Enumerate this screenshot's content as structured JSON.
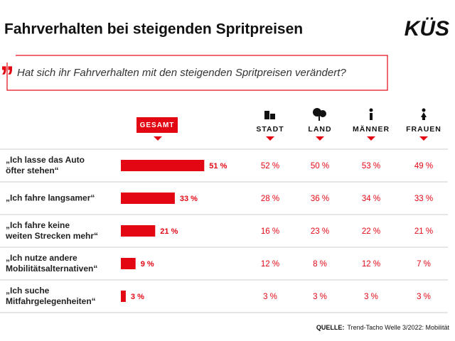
{
  "chart_data": {
    "type": "bar",
    "title": "Fahrverhalten bei steigenden Spritpreisen",
    "brand": "KÜS",
    "question": "Hat sich ihr Fahrverhalten mit den steigenden Spritpreisen verändert?",
    "categories": [
      "„Ich lasse das Auto\nöfter stehen“",
      "„Ich fahre langsamer“",
      "„Ich fahre keine\nweiten Strecken mehr“",
      "„Ich nutze andere\nMobilitätsalternativen“",
      "„Ich suche\nMitfahrgelegenheiten“"
    ],
    "series": [
      {
        "name": "GESAMT",
        "color": "#e30613",
        "values": [
          51,
          33,
          21,
          9,
          3
        ],
        "value_labels": [
          "51 %",
          "33 %",
          "21 %",
          "9 %",
          "3 %"
        ]
      }
    ],
    "breakdown": {
      "columns": [
        "STADT",
        "LAND",
        "MÄNNER",
        "FRAUEN"
      ],
      "rows": [
        [
          "52 %",
          "50 %",
          "53 %",
          "49 %"
        ],
        [
          "28 %",
          "36 %",
          "34 %",
          "33 %"
        ],
        [
          "16 %",
          "23 %",
          "22 %",
          "21 %"
        ],
        [
          "12 %",
          "8 %",
          "12 %",
          "7 %"
        ],
        [
          "3 %",
          "3 %",
          "3 %",
          "3 %"
        ]
      ]
    },
    "source_label": "QUELLE:",
    "source": "Trend-Tacho Welle 3/2022: Mobilität"
  }
}
